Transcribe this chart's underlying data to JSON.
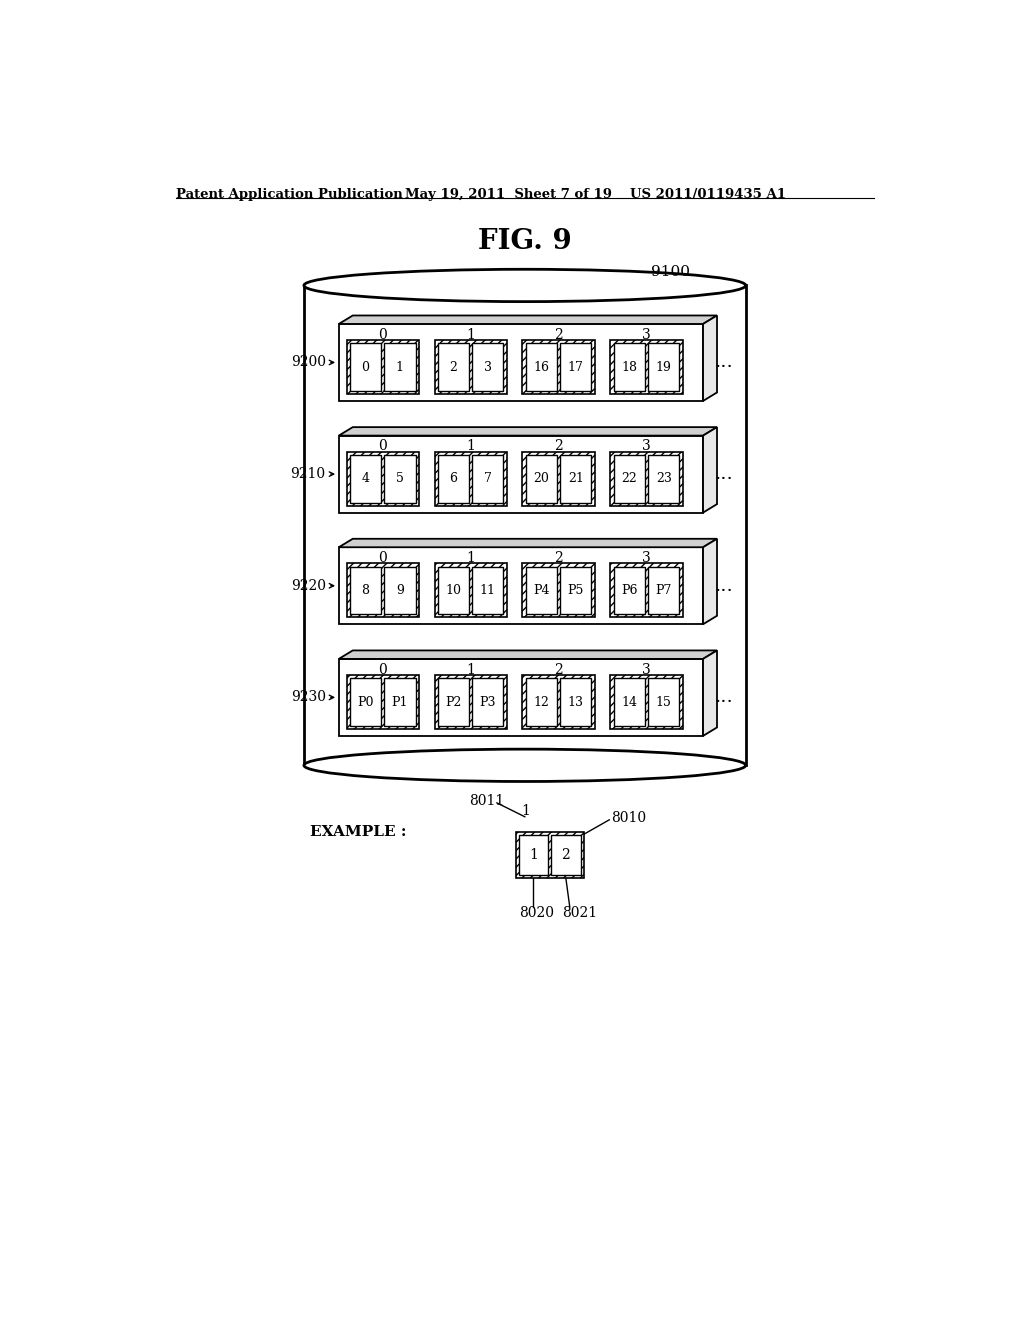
{
  "header_left": "Patent Application Publication",
  "header_mid": "May 19, 2011  Sheet 7 of 19",
  "header_right": "US 2011/0119435 A1",
  "fig_title": "FIG. 9",
  "cylinder_label": "9100",
  "rows": [
    {
      "label": "9200",
      "col_labels": [
        "0",
        "1",
        "2",
        "3"
      ],
      "groups": [
        {
          "cells": [
            "0",
            "1"
          ]
        },
        {
          "cells": [
            "2",
            "3"
          ]
        },
        {
          "cells": [
            "16",
            "17"
          ]
        },
        {
          "cells": [
            "18",
            "19"
          ]
        }
      ]
    },
    {
      "label": "9210",
      "col_labels": [
        "0",
        "1",
        "2",
        "3"
      ],
      "groups": [
        {
          "cells": [
            "4",
            "5"
          ]
        },
        {
          "cells": [
            "6",
            "7"
          ]
        },
        {
          "cells": [
            "20",
            "21"
          ]
        },
        {
          "cells": [
            "22",
            "23"
          ]
        }
      ]
    },
    {
      "label": "9220",
      "col_labels": [
        "0",
        "1",
        "2",
        "3"
      ],
      "groups": [
        {
          "cells": [
            "8",
            "9"
          ]
        },
        {
          "cells": [
            "10",
            "11"
          ]
        },
        {
          "cells": [
            "P4",
            "P5"
          ]
        },
        {
          "cells": [
            "P6",
            "P7"
          ]
        }
      ]
    },
    {
      "label": "9230",
      "col_labels": [
        "0",
        "1",
        "2",
        "3"
      ],
      "groups": [
        {
          "cells": [
            "P0",
            "P1"
          ]
        },
        {
          "cells": [
            "P2",
            "P3"
          ]
        },
        {
          "cells": [
            "12",
            "13"
          ]
        },
        {
          "cells": [
            "14",
            "15"
          ]
        }
      ]
    }
  ],
  "example_label": "EXAMPLE :",
  "example_group_label": "8011",
  "example_group_top_num": "1",
  "example_outer_label": "8010",
  "example_cells": [
    "1",
    "2"
  ],
  "example_cell_labels": [
    "8020",
    "8021"
  ]
}
